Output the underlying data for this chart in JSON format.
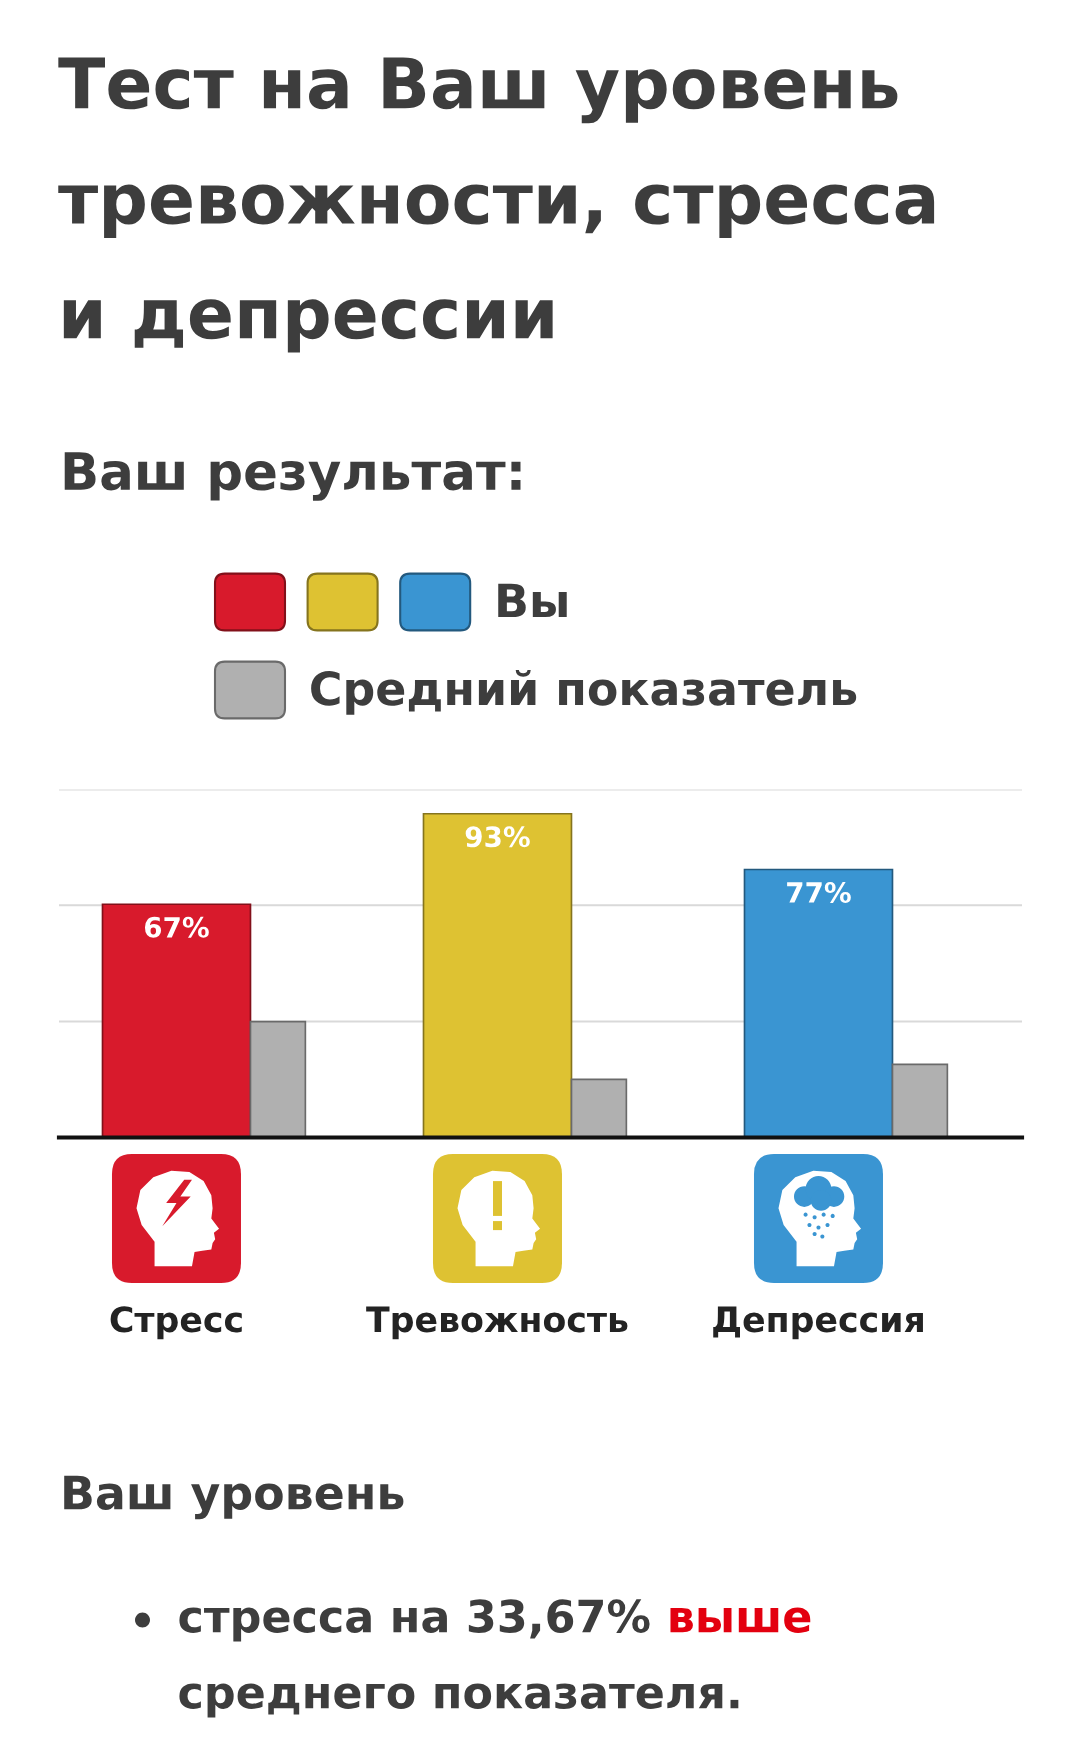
{
  "chart_data": {
    "type": "bar",
    "title": "Тест на Ваш уровень тревожности, стресса и депрессии",
    "subtitle": "Ваш результат:",
    "categories": [
      "Стресс",
      "Тревожность",
      "Депрессия"
    ],
    "series": [
      {
        "name": "Вы",
        "colors": [
          "#d81a2c",
          "#dec232",
          "#3a95d2"
        ],
        "values": [
          67,
          93,
          77
        ],
        "value_labels": [
          "67%",
          "93%",
          "77%"
        ]
      },
      {
        "name": "Средний показатель",
        "color": "#b0b0b0",
        "values": [
          33.3,
          16.7,
          21
        ]
      }
    ],
    "ylim": [
      0,
      100
    ],
    "yticks": [
      {
        "value": 0,
        "label": null
      },
      {
        "value": 33.3,
        "label": null
      },
      {
        "value": 66.7,
        "label": null
      },
      {
        "value": 100,
        "label": null
      }
    ],
    "grid": "y",
    "tick_labels": "x",
    "legend": "top",
    "annotations": [
      "Ваш уровень",
      "стресса на 33,67%",
      "выше",
      "среднего показателя."
    ]
  }
}
